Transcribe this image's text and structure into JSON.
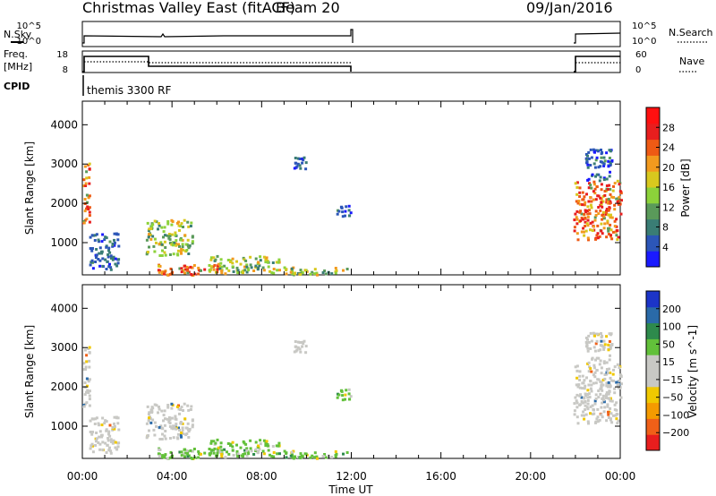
{
  "header": {
    "title": "Christmas Valley East (fitACF)",
    "beam": "Beam 20",
    "date": "09/Jan/2016"
  },
  "panels": {
    "nsky_label": "N.Sky",
    "nsky_ticks": [
      "10^5",
      "10^0"
    ],
    "nsearch_label": "N.Search",
    "nsearch_ticks": [
      "10^5",
      "10^0"
    ],
    "freq_label": "Freq.",
    "freq_unit": "[MHz]",
    "freq_ticks": [
      "18",
      "8"
    ],
    "nave_label": "Nave",
    "nave_ticks": [
      "60",
      "0"
    ],
    "cpid_label": "CPID",
    "cpid_text": "themis 3300 RF"
  },
  "chart_data": [
    {
      "type": "heatmap",
      "name": "power",
      "ylabel": "Slant Range [km]",
      "xlabel": "Time UT",
      "xlim": [
        0,
        24
      ],
      "ylim": [
        180,
        4600
      ],
      "x_ticks": [
        "00:00",
        "04:00",
        "08:00",
        "12:00",
        "16:00",
        "20:00",
        "00:00"
      ],
      "y_ticks": [
        1000,
        2000,
        3000,
        4000
      ],
      "colorbar": {
        "label": "Power [dB]",
        "ticks": [
          "4",
          "8",
          "12",
          "16",
          "20",
          "24",
          "28"
        ],
        "colors": [
          "#1a1aff",
          "#2c56b8",
          "#3a7d75",
          "#5a9a5a",
          "#8cd23a",
          "#d8c81e",
          "#f29a1e",
          "#ee5a14",
          "#e81e1e",
          "#ff1010"
        ]
      },
      "clusters": [
        {
          "t": [
            0.0,
            0.3
          ],
          "r": [
            1400,
            3100
          ],
          "level": "high"
        },
        {
          "t": [
            0.3,
            1.6
          ],
          "r": [
            300,
            1300
          ],
          "level": "low"
        },
        {
          "t": [
            2.8,
            4.9
          ],
          "r": [
            700,
            1600
          ],
          "level": "mid"
        },
        {
          "t": [
            3.3,
            6.4
          ],
          "r": [
            200,
            500
          ],
          "level": "high"
        },
        {
          "t": [
            5.6,
            8.8
          ],
          "r": [
            250,
            700
          ],
          "level": "mid"
        },
        {
          "t": [
            8.8,
            12.0
          ],
          "r": [
            200,
            400
          ],
          "level": "mid"
        },
        {
          "t": [
            9.4,
            10.0
          ],
          "r": [
            2900,
            3200
          ],
          "level": "low"
        },
        {
          "t": [
            11.2,
            12.0
          ],
          "r": [
            1700,
            2000
          ],
          "level": "low"
        },
        {
          "t": [
            21.9,
            24.0
          ],
          "r": [
            1100,
            2600
          ],
          "level": "high"
        },
        {
          "t": [
            22.4,
            23.6
          ],
          "r": [
            2600,
            3400
          ],
          "level": "low"
        }
      ]
    },
    {
      "type": "heatmap",
      "name": "velocity",
      "ylabel": "Slant Range [km]",
      "xlabel": "Time UT",
      "xlim": [
        0,
        24
      ],
      "ylim": [
        180,
        4600
      ],
      "x_ticks": [
        "00:00",
        "04:00",
        "08:00",
        "12:00",
        "16:00",
        "20:00",
        "00:00"
      ],
      "y_ticks": [
        1000,
        2000,
        3000,
        4000
      ],
      "colorbar": {
        "label": "Velocity [m s^-1]",
        "ticks": [
          "200",
          "100",
          "50",
          "15",
          "−15",
          "−50",
          "−100",
          "−200"
        ],
        "colors": [
          "#1c34c8",
          "#2a6aa8",
          "#2e8a4c",
          "#62c03a",
          "#c8c8c4",
          "#c8c8c4",
          "#f0c800",
          "#f49a00",
          "#f06018",
          "#e81e1e"
        ]
      },
      "clusters": [
        {
          "t": [
            0.0,
            0.3
          ],
          "r": [
            1400,
            3100
          ],
          "level": "gray"
        },
        {
          "t": [
            0.3,
            1.6
          ],
          "r": [
            300,
            1300
          ],
          "level": "gray"
        },
        {
          "t": [
            2.8,
            4.9
          ],
          "r": [
            700,
            1600
          ],
          "level": "gray"
        },
        {
          "t": [
            3.3,
            6.4
          ],
          "r": [
            200,
            500
          ],
          "level": "green"
        },
        {
          "t": [
            5.6,
            8.8
          ],
          "r": [
            250,
            700
          ],
          "level": "green"
        },
        {
          "t": [
            8.8,
            12.0
          ],
          "r": [
            200,
            400
          ],
          "level": "green"
        },
        {
          "t": [
            9.4,
            10.0
          ],
          "r": [
            2900,
            3200
          ],
          "level": "gray"
        },
        {
          "t": [
            11.2,
            12.0
          ],
          "r": [
            1700,
            2000
          ],
          "level": "green"
        },
        {
          "t": [
            21.9,
            24.0
          ],
          "r": [
            1100,
            2600
          ],
          "level": "gray"
        },
        {
          "t": [
            22.4,
            23.6
          ],
          "r": [
            2600,
            3400
          ],
          "level": "gray"
        }
      ]
    }
  ]
}
